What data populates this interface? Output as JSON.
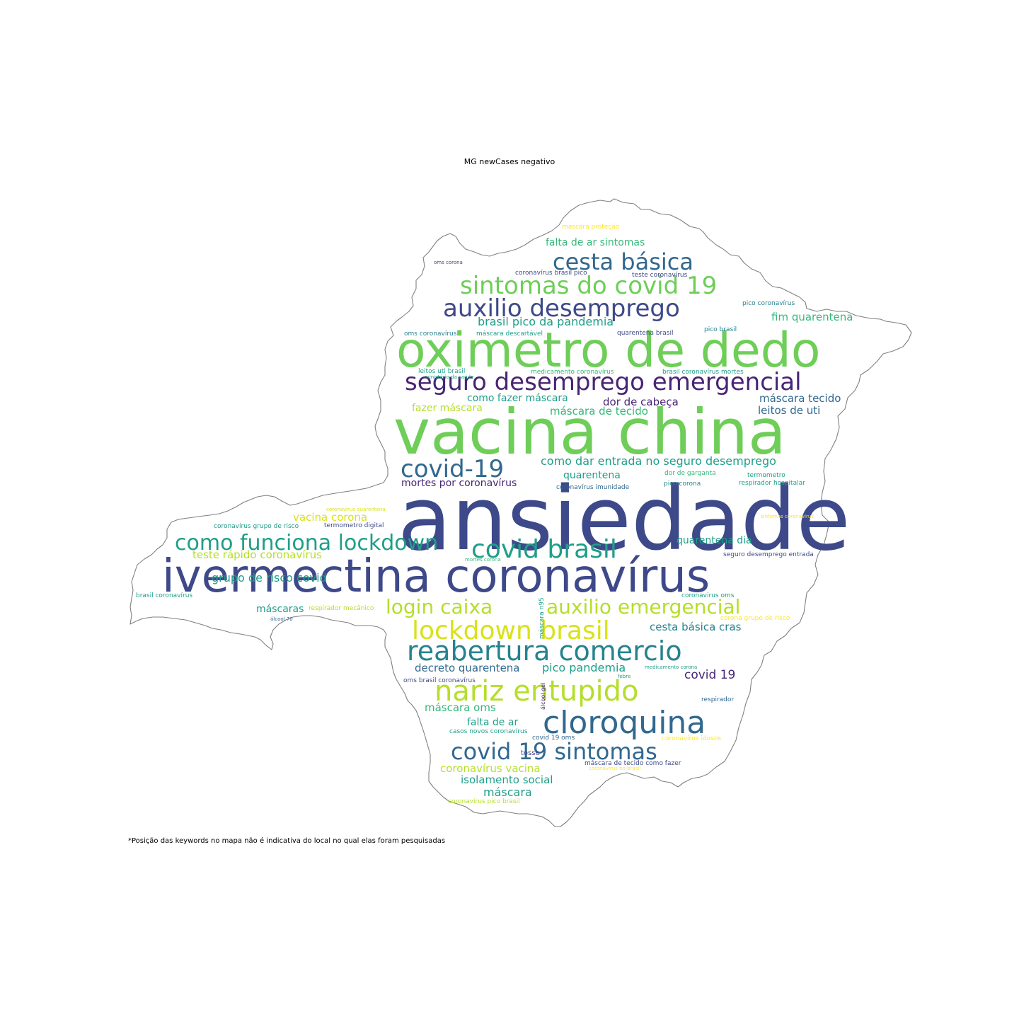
{
  "title": "MG newCases negativo",
  "footnote": "*Posição das keywords no mapa não é indicativa do local no qual elas foram pesquisadas",
  "palette": {
    "dark_purple": "#482475",
    "indigo": "#3e4989",
    "blue": "#31688e",
    "teal": "#26828e",
    "green_teal": "#1f9e89",
    "green": "#35b779",
    "light_green": "#6ece58",
    "lime": "#b5de2b",
    "yellow": "#d8e219",
    "bright_yellow": "#fde725"
  },
  "keywords": [
    {
      "text": "ansiedade",
      "color": "indigo"
    },
    {
      "text": "vacina china",
      "color": "light_green"
    },
    {
      "text": "oximetro de dedo",
      "color": "light_green"
    },
    {
      "text": "ivermectina coronavírus",
      "color": "indigo"
    },
    {
      "text": "seguro desemprego emergencial",
      "color": "dark_purple"
    },
    {
      "text": "auxilio desemprego",
      "color": "indigo"
    },
    {
      "text": "sintomas do covid 19",
      "color": "light_green"
    },
    {
      "text": "cesta básica",
      "color": "blue"
    },
    {
      "text": "covid-19",
      "color": "blue"
    },
    {
      "text": "covid brasil",
      "color": "green_teal"
    },
    {
      "text": "como funciona lockdown",
      "color": "green_teal"
    },
    {
      "text": "login caixa",
      "color": "lime"
    },
    {
      "text": "auxilio emergencial",
      "color": "lime"
    },
    {
      "text": "lockdown brasil",
      "color": "yellow"
    },
    {
      "text": "reabertura comercio",
      "color": "teal"
    },
    {
      "text": "nariz entupido",
      "color": "lime"
    },
    {
      "text": "cloroquina",
      "color": "blue"
    },
    {
      "text": "covid 19 sintomas",
      "color": "blue"
    },
    {
      "text": "falta de ar sintomas",
      "color": "green"
    },
    {
      "text": "máscara proteção",
      "color": "bright_yellow"
    },
    {
      "text": "coronavírus brasil pico",
      "color": "indigo"
    },
    {
      "text": "teste coronavírus",
      "color": "indigo"
    },
    {
      "text": "oms corona",
      "color": "indigo"
    },
    {
      "text": "pico coronavírus",
      "color": "teal"
    },
    {
      "text": "fim quarentena",
      "color": "green"
    },
    {
      "text": "brasil pico da pandemia",
      "color": "green_teal"
    },
    {
      "text": "oms coronavírus",
      "color": "teal"
    },
    {
      "text": "máscara descartável",
      "color": "green_teal"
    },
    {
      "text": "quarentena brasil",
      "color": "indigo"
    },
    {
      "text": "pico brasil",
      "color": "teal"
    },
    {
      "text": "leitos uti brasil",
      "color": "green_teal"
    },
    {
      "text": "medicamento coronavírus",
      "color": "green"
    },
    {
      "text": "brasil coronavírus mortes",
      "color": "green_teal"
    },
    {
      "text": "ministério da saúde",
      "color": "green_teal"
    },
    {
      "text": "como fazer máscara",
      "color": "green_teal"
    },
    {
      "text": "dor de cabeça",
      "color": "dark_purple"
    },
    {
      "text": "máscara tecido",
      "color": "blue"
    },
    {
      "text": "fazer máscara",
      "color": "lime"
    },
    {
      "text": "máscara de tecido",
      "color": "green"
    },
    {
      "text": "leitos de uti",
      "color": "blue"
    },
    {
      "text": "como dar entrada no seguro desemprego",
      "color": "green_teal"
    },
    {
      "text": "quarentena",
      "color": "green_teal"
    },
    {
      "text": "dor de garganta",
      "color": "green"
    },
    {
      "text": "termometro",
      "color": "green_teal"
    },
    {
      "text": "mortes por coronavírus",
      "color": "dark_purple"
    },
    {
      "text": "coronavírus imunidade",
      "color": "blue"
    },
    {
      "text": "pico corona",
      "color": "teal"
    },
    {
      "text": "respirador hospitalar",
      "color": "green_teal"
    },
    {
      "text": "coronavirus quarentena",
      "color": "yellow"
    },
    {
      "text": "vacina corona",
      "color": "yellow"
    },
    {
      "text": "coronavírus grupo de risco",
      "color": "green_teal"
    },
    {
      "text": "termometro digital",
      "color": "indigo"
    },
    {
      "text": "sintomas coronavírus",
      "color": "bright_yellow"
    },
    {
      "text": "teste rápido coronavírus",
      "color": "lime"
    },
    {
      "text": "quarentena dia",
      "color": "green_teal"
    },
    {
      "text": "mortes corona",
      "color": "green"
    },
    {
      "text": "seguro desemprego entrada",
      "color": "indigo"
    },
    {
      "text": "brasil coronavírus",
      "color": "green_teal"
    },
    {
      "text": "grupo de risco covid",
      "color": "green_teal"
    },
    {
      "text": "coronavirus oms",
      "color": "green_teal"
    },
    {
      "text": "máscaras",
      "color": "green_teal"
    },
    {
      "text": "respirador mecânico",
      "color": "lime"
    },
    {
      "text": "corona grupo de risco",
      "color": "bright_yellow"
    },
    {
      "text": "álcool 70",
      "color": "blue"
    },
    {
      "text": "máscara n95",
      "color": "green_teal"
    },
    {
      "text": "cesta básica cras",
      "color": "teal"
    },
    {
      "text": "decreto quarentena",
      "color": "blue"
    },
    {
      "text": "pico pandemia",
      "color": "green_teal"
    },
    {
      "text": "medicamento corona",
      "color": "green_teal"
    },
    {
      "text": "covid 19",
      "color": "dark_purple"
    },
    {
      "text": "oms brasil coronavírus",
      "color": "indigo"
    },
    {
      "text": "febre",
      "color": "green_teal"
    },
    {
      "text": "álcool gel",
      "color": "dark_purple"
    },
    {
      "text": "respirador",
      "color": "blue"
    },
    {
      "text": "máscara oms",
      "color": "green"
    },
    {
      "text": "falta de ar",
      "color": "green_teal"
    },
    {
      "text": "casos novos coronavírus",
      "color": "green_teal"
    },
    {
      "text": "covid 19 oms",
      "color": "blue"
    },
    {
      "text": "coronavírus idosos",
      "color": "bright_yellow"
    },
    {
      "text": "tosse",
      "color": "indigo"
    },
    {
      "text": "máscara de tecido como fazer",
      "color": "indigo"
    },
    {
      "text": "coronavírus vacina",
      "color": "lime"
    },
    {
      "text": "coronavirus no brasil",
      "color": "bright_yellow"
    },
    {
      "text": "isolamento social",
      "color": "green_teal"
    },
    {
      "text": "máscara",
      "color": "green_teal"
    },
    {
      "text": "coronavírus pico brasil",
      "color": "lime"
    }
  ]
}
